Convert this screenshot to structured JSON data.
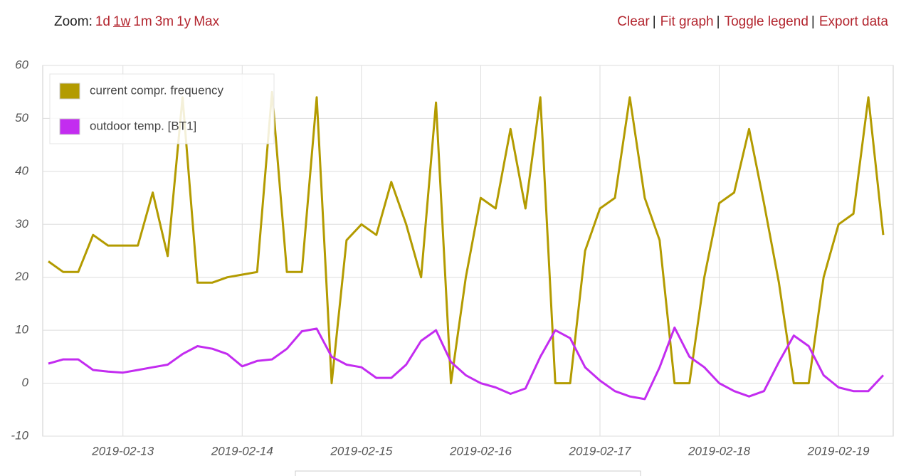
{
  "toolbar": {
    "zoom_label": "Zoom:",
    "zoom_options": [
      "1d",
      "1w",
      "1m",
      "3m",
      "1y",
      "Max"
    ],
    "active_zoom": "1w",
    "actions": [
      "Clear",
      "Fit graph",
      "Toggle legend",
      "Export data"
    ],
    "separator": "|"
  },
  "chart_data": {
    "type": "line",
    "legend": "upper left",
    "grid": true,
    "categories": [
      null,
      null,
      null,
      null,
      null,
      "2019-02-13",
      null,
      null,
      null,
      null,
      null,
      null,
      null,
      "2019-02-14",
      null,
      null,
      null,
      null,
      null,
      null,
      null,
      "2019-02-15",
      null,
      null,
      null,
      null,
      null,
      null,
      null,
      "2019-02-16",
      null,
      null,
      null,
      null,
      null,
      null,
      null,
      "2019-02-17",
      null,
      null,
      null,
      null,
      null,
      null,
      null,
      "2019-02-18",
      null,
      null,
      null,
      null,
      null,
      null,
      null,
      "2019-02-19",
      null,
      null,
      null
    ],
    "ylim": [
      -10,
      60
    ],
    "yticks": [
      -10,
      0,
      10,
      20,
      30,
      40,
      50,
      60
    ],
    "series": [
      {
        "name": "current compr. frequency",
        "color": "#b39b00",
        "values": [
          23,
          21,
          21,
          28,
          26,
          26,
          26,
          36,
          24,
          54,
          19,
          19,
          20,
          20.5,
          21,
          55,
          21,
          21,
          54,
          0,
          27,
          30,
          28,
          38,
          30,
          20,
          53,
          0,
          20,
          35,
          33,
          48,
          33,
          54,
          0,
          0,
          25,
          33,
          35,
          54,
          35,
          27,
          0,
          0,
          20,
          34,
          36,
          48,
          34,
          19,
          0,
          0,
          20,
          30,
          32,
          54,
          28
        ]
      },
      {
        "name": "outdoor temp. [BT1]",
        "color": "#c32cf0",
        "values": [
          3.7,
          4.5,
          4.5,
          2.5,
          2.2,
          2.0,
          2.5,
          3.0,
          3.5,
          5.5,
          7.0,
          6.5,
          5.5,
          3.2,
          4.2,
          4.5,
          6.5,
          9.8,
          10.3,
          5.0,
          3.5,
          3.0,
          1.0,
          1.0,
          3.5,
          8.0,
          10.0,
          4.0,
          1.5,
          0.0,
          -0.8,
          -2.0,
          -1.0,
          5.0,
          10.0,
          8.5,
          3.0,
          0.5,
          -1.5,
          -2.5,
          -3.0,
          3.0,
          10.5,
          5.0,
          3.0,
          0.0,
          -1.5,
          -2.5,
          -1.5,
          4.0,
          9.0,
          7.0,
          1.5,
          -0.8,
          -1.5,
          -1.5,
          1.5
        ]
      }
    ]
  }
}
